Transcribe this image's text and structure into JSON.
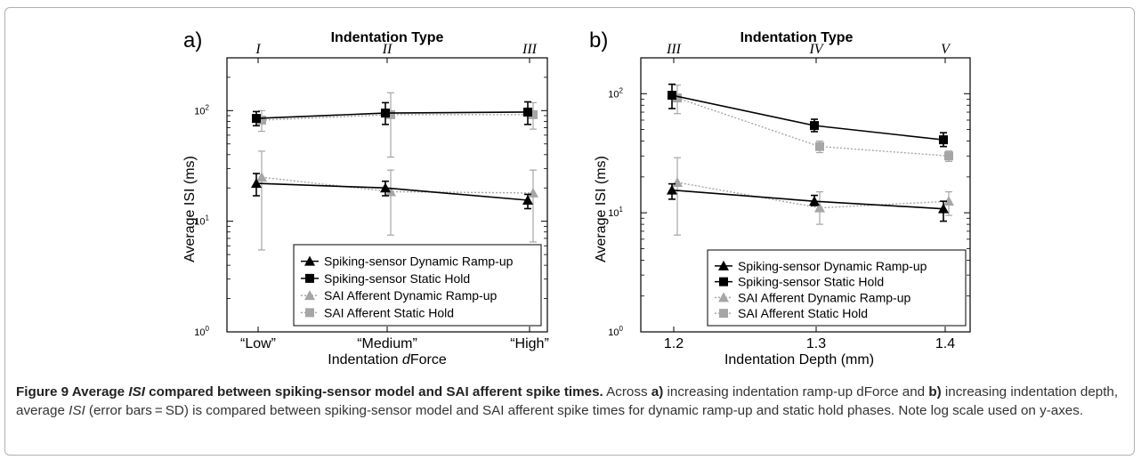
{
  "figure": {
    "caption": {
      "label": "Figure 9",
      "title_a": "Average ",
      "title_isi": "ISI",
      "title_b": " compared between spiking-sensor model and SAI afferent spike times.",
      "body_1": " Across ",
      "a_tag": "a)",
      "body_2": " increasing indentation ramp-up dForce and ",
      "b_tag": "b)",
      "body_3": " increasing indentation depth, average ",
      "isi": "ISI",
      "body_4": " (error bars = SD) is compared between spiking-sensor model and SAI afferent spike times for dynamic ramp-up and static hold phases. Note log scale used on y-axes."
    }
  },
  "chart_data": [
    {
      "type": "line",
      "panel_label": "a)",
      "top_title": "Indentation Type",
      "top_ticks": [
        "I",
        "II",
        "III"
      ],
      "xlabel_pre": "Indentation ",
      "xlabel_italic": "d",
      "xlabel_post": "Force",
      "xlabel": "Indentation dForce",
      "ylabel": "Average ISI (ms)",
      "yscale": "log",
      "ylim": [
        1,
        300
      ],
      "categories": [
        "“Low”",
        "“Medium”",
        "“High”"
      ],
      "legend_position": "bottom-right",
      "series": [
        {
          "name": "Spiking-sensor Dynamic Ramp-up",
          "marker": "triangle",
          "color": "#000000",
          "dashed": false,
          "values": [
            22,
            20,
            15.5
          ],
          "err_low": [
            17,
            17,
            13
          ],
          "err_high": [
            27,
            23,
            17.5
          ]
        },
        {
          "name": "Spiking-sensor Static Hold",
          "marker": "square",
          "color": "#000000",
          "dashed": false,
          "values": [
            85,
            95,
            97
          ],
          "err_low": [
            73,
            75,
            75
          ],
          "err_high": [
            98,
            118,
            120
          ]
        },
        {
          "name": "SAI Afferent Dynamic Ramp-up",
          "marker": "triangle",
          "color": "#a6a6a6",
          "dashed": true,
          "values": [
            25,
            18.5,
            18
          ],
          "err_low": [
            5.5,
            7.5,
            6.5
          ],
          "err_high": [
            43,
            29,
            29
          ]
        },
        {
          "name": "SAI Afferent Static Hold",
          "marker": "square",
          "color": "#a6a6a6",
          "dashed": true,
          "values": [
            82,
            92,
            92
          ],
          "err_low": [
            65,
            38,
            68
          ],
          "err_high": [
            100,
            145,
            118
          ]
        }
      ]
    },
    {
      "type": "line",
      "panel_label": "b)",
      "top_title": "Indentation Type",
      "top_ticks": [
        "III",
        "IV",
        "V"
      ],
      "xlabel": "Indentation Depth (mm)",
      "ylabel": "Average ISI (ms)",
      "yscale": "log",
      "ylim": [
        1,
        200
      ],
      "categories": [
        "1.2",
        "1.3",
        "1.4"
      ],
      "legend_position": "bottom-right",
      "series": [
        {
          "name": "Spiking-sensor Dynamic Ramp-up",
          "marker": "triangle",
          "color": "#000000",
          "dashed": false,
          "values": [
            15.5,
            12.5,
            10.8
          ],
          "err_low": [
            13,
            11.5,
            8.5
          ],
          "err_high": [
            17.5,
            14,
            12.5
          ]
        },
        {
          "name": "Spiking-sensor Static Hold",
          "marker": "square",
          "color": "#000000",
          "dashed": false,
          "values": [
            97,
            54,
            41
          ],
          "err_low": [
            75,
            48,
            36
          ],
          "err_high": [
            120,
            61,
            47
          ]
        },
        {
          "name": "SAI Afferent Dynamic Ramp-up",
          "marker": "triangle",
          "color": "#a6a6a6",
          "dashed": true,
          "values": [
            18,
            11,
            12.5
          ],
          "err_low": [
            6.5,
            8,
            9.5
          ],
          "err_high": [
            29,
            15,
            15
          ]
        },
        {
          "name": "SAI Afferent Static Hold",
          "marker": "square",
          "color": "#a6a6a6",
          "dashed": true,
          "values": [
            92,
            36,
            30
          ],
          "err_low": [
            68,
            32,
            27
          ],
          "err_high": [
            118,
            40,
            33
          ]
        }
      ]
    }
  ]
}
